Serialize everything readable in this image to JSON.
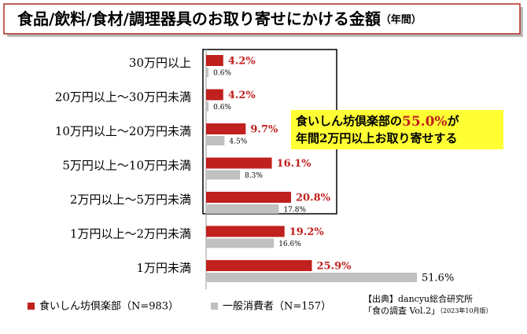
{
  "chart_data": {
    "type": "bar",
    "orientation": "horizontal",
    "title": "食品/飲料/食材/調理器具のお取り寄せにかける金額",
    "title_note": "（年間）",
    "categories": [
      "30万円以上",
      "20万円以上～30万円未満",
      "10万円以上～20万円未満",
      "5万円以上～10万円未満",
      "2万円以上～5万円未満",
      "1万円以上～2万円未満",
      "1万円未満"
    ],
    "series": [
      {
        "name": "食いしん坊倶楽部（N=983）",
        "color": "#c0201e",
        "values": [
          4.2,
          4.2,
          9.7,
          16.1,
          20.8,
          19.2,
          25.9
        ],
        "value_labels": [
          "4.2%",
          "4.2%",
          "9.7%",
          "16.1%",
          "20.8%",
          "19.2%",
          "25.9%"
        ]
      },
      {
        "name": "一般消費者（N=157）",
        "color": "#c0c0c0",
        "values": [
          0.6,
          0.6,
          4.5,
          8.3,
          17.8,
          16.6,
          51.6
        ],
        "value_labels": [
          "0.6%",
          "0.6%",
          "4.5%",
          "8.3%",
          "17.8%",
          "16.6%",
          "51.6%"
        ]
      }
    ],
    "annotation": {
      "line1": [
        "食いしん坊倶楽部の",
        "55.0%",
        "が"
      ],
      "line2": "年間2万円以上お取り寄せする"
    },
    "source": [
      "【出典】dancyu総合研究所",
      "「食の調査 Vol.2」",
      "（2023年10月版）"
    ]
  }
}
